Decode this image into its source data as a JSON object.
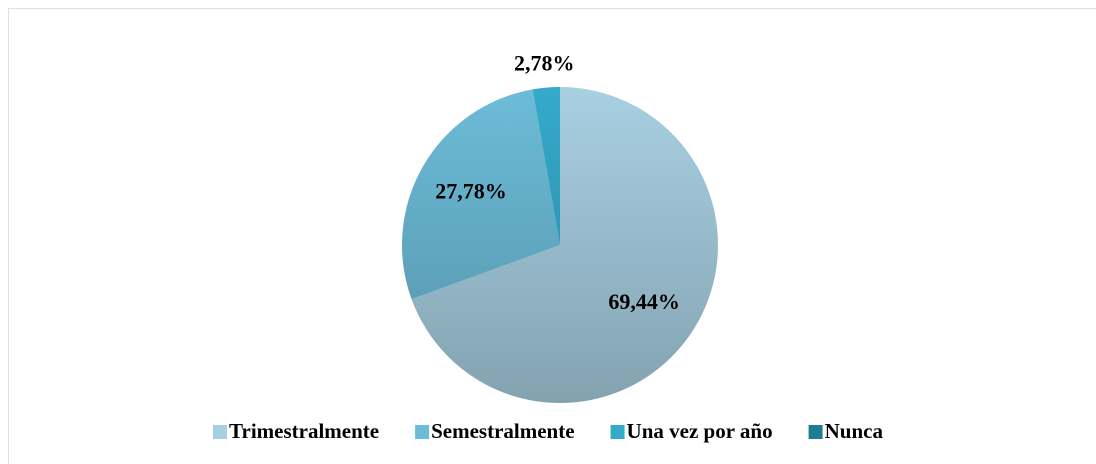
{
  "chart_data": {
    "type": "pie",
    "categories": [
      "Trimestralmente",
      "Semestralmente",
      "Una vez por año",
      "Nunca"
    ],
    "values": [
      69.44,
      27.78,
      2.78,
      0
    ],
    "value_labels": [
      "69,44%",
      "27,78%",
      "2,78%",
      null
    ],
    "colors": [
      "#a8d0e2",
      "#6cbcd8",
      "#35aacb",
      "#1f7d93"
    ],
    "legend": "bottom"
  }
}
